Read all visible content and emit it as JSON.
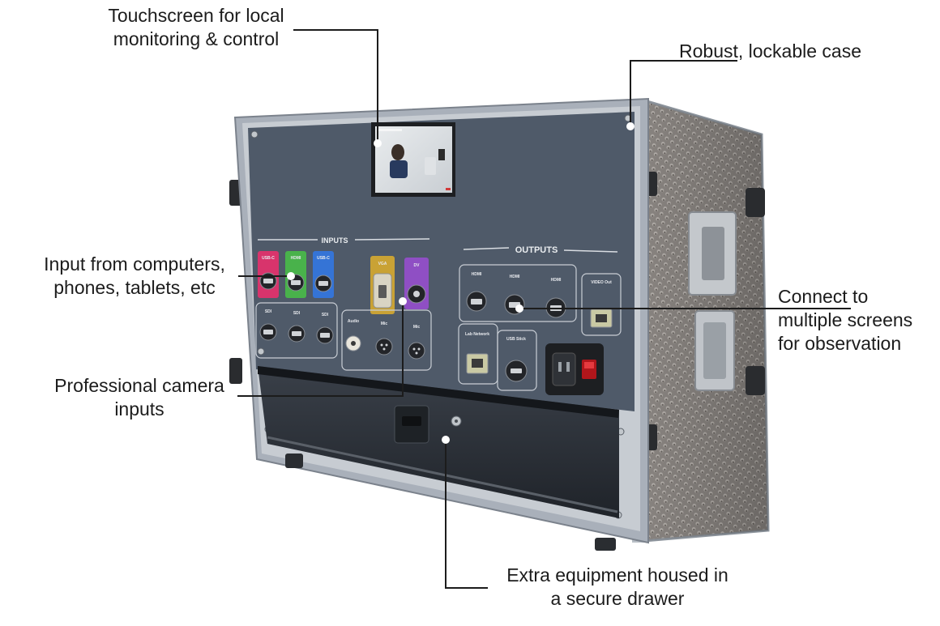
{
  "callouts": {
    "touchscreen": [
      "Touchscreen for local",
      "monitoring & control"
    ],
    "case": [
      "Robust, lockable case"
    ],
    "inputs": [
      "Input from computers,",
      "phones, tablets, etc"
    ],
    "screens": [
      "Connect to",
      "multiple screens",
      "for observation"
    ],
    "camera": [
      "Professional camera",
      "inputs"
    ],
    "drawer": [
      "Extra equipment housed in",
      "a secure drawer"
    ]
  },
  "panel": {
    "inputs_title": "INPUTS",
    "outputs_title": "OUTPUTS",
    "inputs_top": [
      "USB-C",
      "HDMI",
      "USB-C",
      "VGA",
      "DV"
    ],
    "inputs_bottom": [
      "SDI",
      "SDI",
      "SDI",
      "Audio",
      "Mic",
      "Mic"
    ],
    "outputs_top": [
      "HDMI",
      "HDMI",
      "HDMI",
      "VIDEO Out"
    ],
    "outputs_bottom": [
      "Lab Network",
      "USB Stick"
    ]
  },
  "colors": {
    "panel": "#4f5a69",
    "case_frame": "#a9b0ba",
    "drawer": "#2a2f36",
    "badge_pink": "#d8346c",
    "badge_green": "#49b24b",
    "badge_blue": "#3574d6",
    "badge_gold": "#c9a235",
    "badge_purple": "#8f4fc4"
  }
}
